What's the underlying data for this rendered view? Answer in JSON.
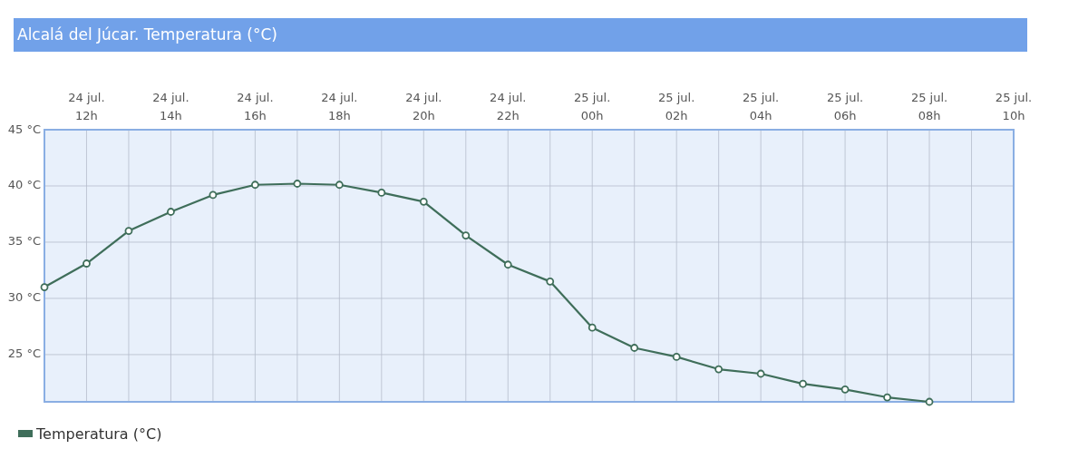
{
  "chart_data": {
    "type": "line",
    "title": "Alcalá del Júcar. Temperatura (°C)",
    "categories": [
      null,
      "24 jul.\n12h",
      null,
      "24 jul.\n14h",
      null,
      "24 jul.\n16h",
      null,
      "24 jul.\n18h",
      null,
      "24 jul.\n20h",
      null,
      "24 jul.\n22h",
      null,
      "25 jul.\n00h",
      null,
      "25 jul.\n02h",
      null,
      "25 jul.\n04h",
      null,
      "25 jul.\n06h",
      null,
      "25 jul.\n08h",
      null,
      "25 jul.\n10h"
    ],
    "series": [
      {
        "name": "Temperatura (°C)",
        "color": "#3f6e5a",
        "values": [
          31.0,
          33.1,
          36.0,
          37.7,
          39.2,
          40.1,
          40.2,
          40.1,
          39.4,
          38.6,
          35.6,
          33.0,
          31.5,
          27.4,
          25.6,
          24.8,
          23.7,
          23.3,
          22.4,
          21.9,
          21.2,
          20.8,
          null,
          null
        ]
      }
    ],
    "ylim": [
      20.8,
      45
    ],
    "yticks": [
      {
        "value": 25,
        "label": "25 °C"
      },
      {
        "value": 30,
        "label": "30 °C"
      },
      {
        "value": 35,
        "label": "35 °C"
      },
      {
        "value": 40,
        "label": "40 °C"
      },
      {
        "value": 45,
        "label": "45 °C"
      }
    ],
    "grid": true,
    "marker": "circle",
    "line_style": "solid",
    "legend": "bottom left"
  }
}
